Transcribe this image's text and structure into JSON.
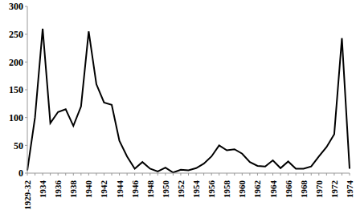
{
  "chart_data": {
    "type": "line",
    "categories": [
      "1929-32",
      null,
      "1934",
      null,
      "1936",
      null,
      "1938",
      null,
      "1940",
      null,
      "1942",
      null,
      "1944",
      null,
      "1946",
      null,
      "1948",
      null,
      "1950",
      null,
      "1952",
      null,
      "1954",
      null,
      "1956",
      null,
      "1958",
      null,
      "1960",
      null,
      "1962",
      null,
      "1964",
      null,
      "1966",
      null,
      "1968",
      null,
      "1970",
      null,
      "1972",
      null,
      "1974"
    ],
    "values": [
      5,
      100,
      260,
      90,
      110,
      115,
      85,
      120,
      255,
      160,
      127,
      123,
      58,
      30,
      8,
      20,
      8,
      3,
      10,
      1,
      6,
      5,
      9,
      17,
      30,
      50,
      41,
      43,
      35,
      20,
      13,
      12,
      23,
      9,
      21,
      8,
      8,
      12,
      30,
      47,
      70,
      243,
      8
    ],
    "color": "#000000",
    "ylim": [
      0,
      300
    ],
    "yticks": [
      0,
      50,
      100,
      150,
      200,
      250,
      300
    ],
    "grid": false
  }
}
